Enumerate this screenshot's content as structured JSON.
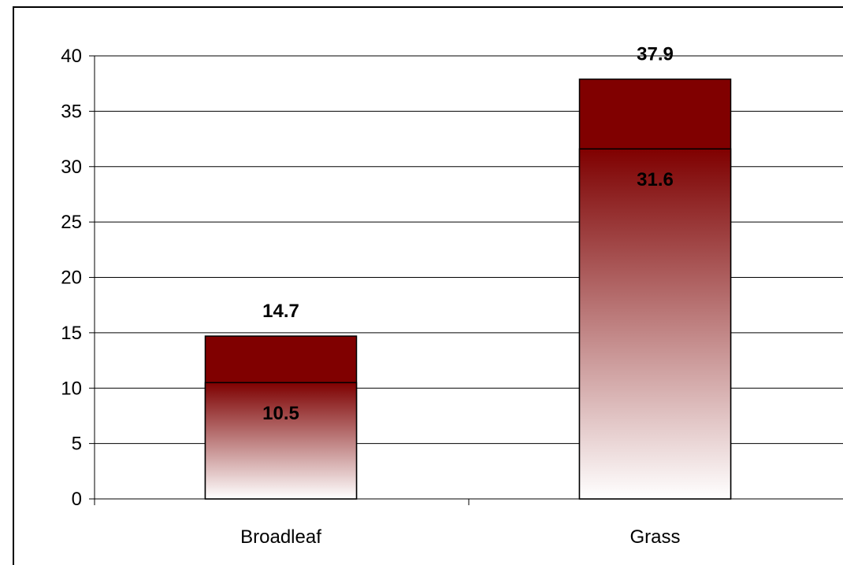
{
  "chart_data": {
    "type": "bar",
    "stacked": false,
    "categories": [
      "Broadleaf",
      "Grass"
    ],
    "series": [
      {
        "values": [
          14.7,
          37.9
        ],
        "color": "#800000"
      },
      {
        "values": [
          10.5,
          31.6
        ],
        "fill": "gradient",
        "gradient_top": "#800000",
        "gradient_bottom": "#ffffff"
      }
    ],
    "data_labels": {
      "outer": [
        "14.7",
        "37.9"
      ],
      "inner": [
        "10.5",
        "31.6"
      ]
    },
    "y_ticks": [
      "0",
      "5",
      "10",
      "15",
      "20",
      "25",
      "30",
      "35",
      "40"
    ],
    "ylim": [
      0,
      40
    ],
    "grid": true,
    "title": "",
    "xlabel": "",
    "ylabel": ""
  }
}
